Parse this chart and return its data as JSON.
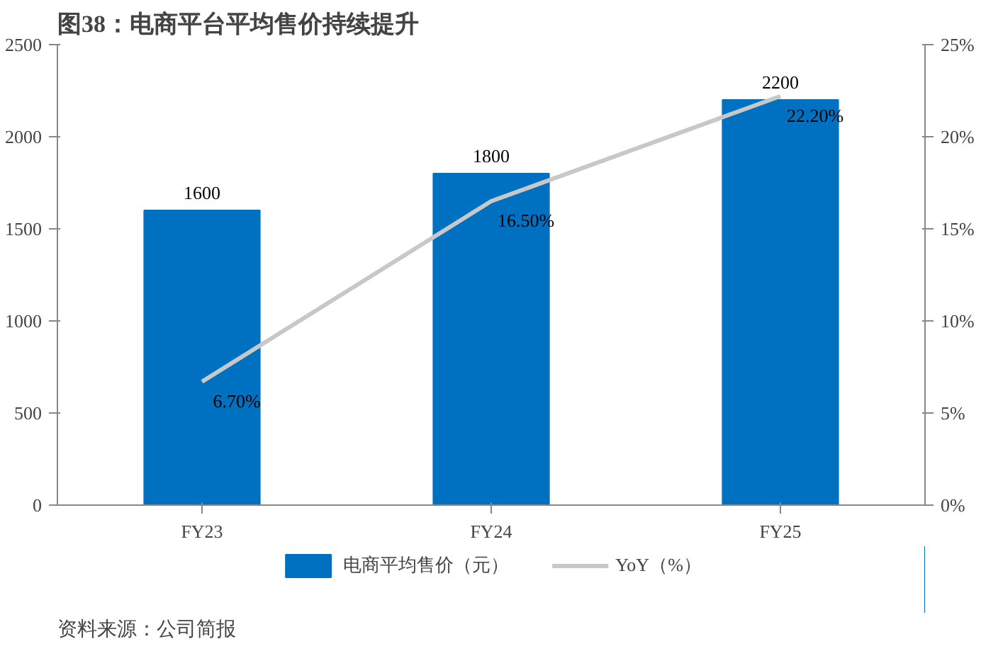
{
  "chart_data": {
    "type": "bar",
    "title": "图38：电商平台平均售价持续提升",
    "categories": [
      "FY23",
      "FY24",
      "FY25"
    ],
    "series": [
      {
        "name": "电商平均售价（元）",
        "type": "bar",
        "color": "#0070c0",
        "values": [
          1600,
          1800,
          2200
        ],
        "value_labels": [
          "1600",
          "1800",
          "2200"
        ]
      },
      {
        "name": "YoY（%）",
        "type": "line",
        "axis": "y2",
        "color": "#c8c8c8",
        "values": [
          6.7,
          16.5,
          22.2
        ],
        "value_labels": [
          "6.70%",
          "16.50%",
          "22.20%"
        ]
      }
    ],
    "ylim": [
      0,
      2500
    ],
    "yticks": [
      0,
      500,
      1000,
      1500,
      2000,
      2500
    ],
    "y2lim": [
      0,
      25
    ],
    "y2ticks": [
      {
        "value": 0,
        "label": "0%"
      },
      {
        "value": 5,
        "label": "5%"
      },
      {
        "value": 10,
        "label": "10%"
      },
      {
        "value": 15,
        "label": "15%"
      },
      {
        "value": 20,
        "label": "20%"
      },
      {
        "value": 25,
        "label": "25%"
      }
    ],
    "legend": "bottom",
    "grid": false,
    "marker": "none",
    "line_style": "solid",
    "annotations": [
      "资料来源：公司简报"
    ]
  }
}
